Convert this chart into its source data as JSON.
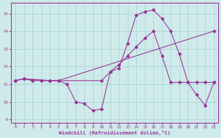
{
  "xlabel": "Windchill (Refroidissement éolien,°C)",
  "background_color": "#ceeaea",
  "grid_color": "#aacfcf",
  "line_color": "#993399",
  "xlim": [
    -0.5,
    23.5
  ],
  "ylim": [
    8.8,
    15.6
  ],
  "yticks": [
    9,
    10,
    11,
    12,
    13,
    14,
    15
  ],
  "xticks": [
    0,
    1,
    2,
    3,
    4,
    5,
    6,
    7,
    8,
    9,
    10,
    11,
    12,
    13,
    14,
    15,
    16,
    17,
    18,
    19,
    20,
    21,
    22,
    23
  ],
  "series1_x": [
    0,
    1,
    2,
    3,
    4,
    5,
    6,
    7,
    8,
    9,
    10,
    11,
    12,
    13,
    14,
    15,
    16,
    17,
    18,
    19,
    20,
    21,
    22,
    23
  ],
  "series1_y": [
    11.2,
    11.3,
    11.2,
    11.2,
    11.2,
    11.2,
    11.0,
    10.0,
    9.9,
    9.5,
    9.6,
    11.7,
    11.9,
    13.3,
    14.9,
    15.1,
    15.2,
    14.7,
    14.0,
    12.7,
    11.1,
    10.4,
    9.8,
    11.1
  ],
  "series2_x": [
    0,
    1,
    4,
    5,
    23
  ],
  "series2_y": [
    11.2,
    11.3,
    11.2,
    11.2,
    14.0
  ],
  "series3_x": [
    0,
    1,
    4,
    5,
    10,
    11,
    12,
    13,
    14,
    15,
    16,
    17,
    18,
    19,
    20,
    21,
    22,
    23
  ],
  "series3_y": [
    11.2,
    11.3,
    11.2,
    11.2,
    11.2,
    11.7,
    12.1,
    12.6,
    13.1,
    13.6,
    14.0,
    12.6,
    11.1,
    11.1,
    11.1,
    11.1,
    11.1,
    11.1
  ]
}
